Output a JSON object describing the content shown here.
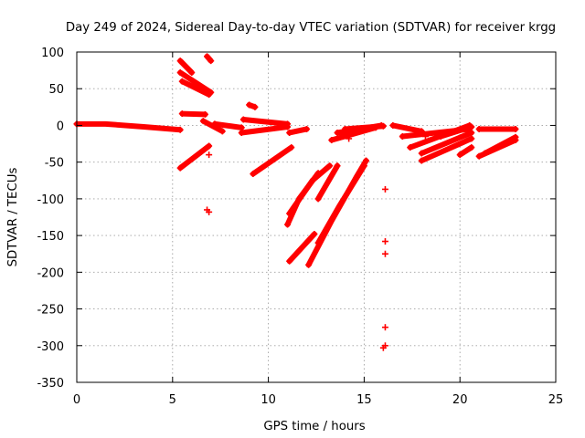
{
  "chart_data": {
    "type": "scatter",
    "title": "Day 249 of 2024, Sidereal Day-to-day VTEC variation (SDTVAR) for receiver krgg",
    "xlabel": "GPS time / hours",
    "ylabel": "SDTVAR / TECUs",
    "xlim": [
      0,
      25
    ],
    "ylim": [
      -350,
      100
    ],
    "xticks": [
      0,
      5,
      10,
      15,
      20,
      25
    ],
    "yticks": [
      100,
      50,
      0,
      -50,
      -100,
      -150,
      -200,
      -250,
      -300,
      -350
    ],
    "grid": true,
    "marker": "plus",
    "color": "#ff0000",
    "tracks": [
      {
        "points": [
          [
            0.0,
            2
          ],
          [
            1.5,
            2
          ],
          [
            3.5,
            -2
          ],
          [
            5.4,
            -6
          ]
        ]
      },
      {
        "points": [
          [
            5.4,
            88
          ],
          [
            6.0,
            72
          ]
        ]
      },
      {
        "points": [
          [
            5.4,
            72
          ],
          [
            7.0,
            45
          ]
        ]
      },
      {
        "points": [
          [
            5.5,
            60
          ],
          [
            6.9,
            42
          ]
        ]
      },
      {
        "points": [
          [
            6.8,
            94
          ],
          [
            7.0,
            88
          ]
        ]
      },
      {
        "points": [
          [
            5.5,
            16
          ],
          [
            6.7,
            15
          ]
        ]
      },
      {
        "points": [
          [
            6.6,
            6
          ],
          [
            7.6,
            -8
          ]
        ]
      },
      {
        "points": [
          [
            7.2,
            2
          ],
          [
            8.6,
            -3
          ]
        ]
      },
      {
        "points": [
          [
            8.7,
            8
          ],
          [
            11.0,
            2
          ]
        ]
      },
      {
        "points": [
          [
            8.6,
            -10
          ],
          [
            11.0,
            -2
          ]
        ]
      },
      {
        "points": [
          [
            5.4,
            -58
          ],
          [
            6.9,
            -28
          ]
        ]
      },
      {
        "points": [
          [
            9.2,
            -66
          ],
          [
            11.2,
            -30
          ]
        ]
      },
      {
        "points": [
          [
            11.1,
            -10
          ],
          [
            12.0,
            -5
          ]
        ]
      },
      {
        "points": [
          [
            11.0,
            -135
          ],
          [
            11.6,
            -100
          ],
          [
            12.6,
            -65
          ]
        ]
      },
      {
        "points": [
          [
            11.1,
            -120
          ],
          [
            12.3,
            -75
          ],
          [
            13.2,
            -55
          ]
        ]
      },
      {
        "points": [
          [
            12.6,
            -100
          ],
          [
            13.6,
            -55
          ]
        ]
      },
      {
        "points": [
          [
            11.1,
            -185
          ],
          [
            12.4,
            -148
          ]
        ]
      },
      {
        "points": [
          [
            12.1,
            -190
          ],
          [
            13.3,
            -130
          ],
          [
            14.6,
            -70
          ],
          [
            15.1,
            -48
          ]
        ]
      },
      {
        "points": [
          [
            12.6,
            -160
          ],
          [
            13.7,
            -110
          ],
          [
            15.0,
            -55
          ]
        ]
      },
      {
        "points": [
          [
            13.3,
            -20
          ],
          [
            15.6,
            -3
          ]
        ]
      },
      {
        "points": [
          [
            13.6,
            -10
          ],
          [
            15.9,
            0
          ]
        ]
      },
      {
        "points": [
          [
            14.0,
            -5
          ],
          [
            16.0,
            -1
          ]
        ]
      },
      {
        "points": [
          [
            16.5,
            0
          ],
          [
            18.0,
            -8
          ]
        ]
      },
      {
        "points": [
          [
            17.0,
            -15
          ],
          [
            20.5,
            -5
          ]
        ]
      },
      {
        "points": [
          [
            17.4,
            -30
          ],
          [
            20.5,
            0
          ]
        ]
      },
      {
        "points": [
          [
            18.0,
            -38
          ],
          [
            20.6,
            -10
          ]
        ]
      },
      {
        "points": [
          [
            18.0,
            -48
          ],
          [
            20.6,
            -18
          ]
        ]
      },
      {
        "points": [
          [
            19.0,
            -15
          ],
          [
            20.6,
            -2
          ]
        ]
      },
      {
        "points": [
          [
            20.0,
            -40
          ],
          [
            20.6,
            -30
          ]
        ]
      },
      {
        "points": [
          [
            21.0,
            -42
          ],
          [
            22.9,
            -20
          ]
        ]
      },
      {
        "points": [
          [
            21.3,
            -38
          ],
          [
            22.9,
            -16
          ]
        ]
      },
      {
        "points": [
          [
            21.0,
            -5
          ],
          [
            22.9,
            -5
          ]
        ]
      },
      {
        "points": [
          [
            9.0,
            28
          ],
          [
            9.3,
            25
          ]
        ]
      }
    ],
    "isolated_points": [
      [
        6.9,
        -40
      ],
      [
        6.9,
        -118
      ],
      [
        6.8,
        -115
      ],
      [
        16.1,
        -87
      ],
      [
        16.1,
        -158
      ],
      [
        16.1,
        -175
      ],
      [
        16.1,
        -275
      ],
      [
        16.1,
        -300
      ],
      [
        16.0,
        -303
      ],
      [
        14.2,
        -18
      ],
      [
        18.2,
        -15
      ]
    ]
  }
}
